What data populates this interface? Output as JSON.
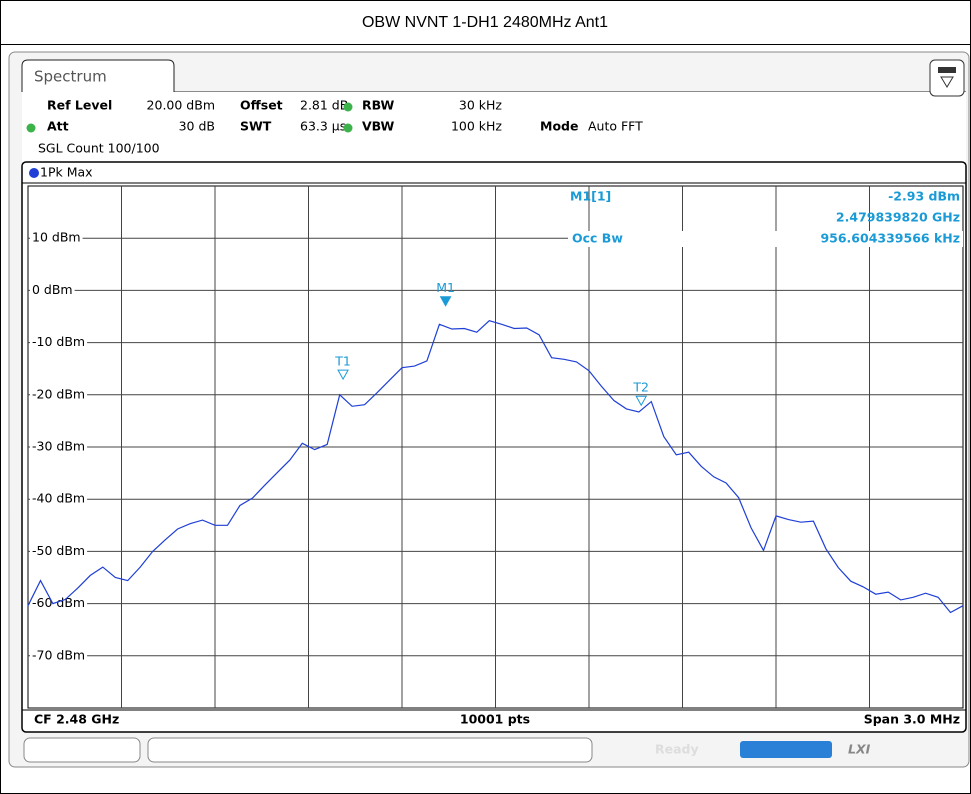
{
  "title": "OBW NVNT 1-DH1 2480MHz Ant1",
  "tab": "Spectrum",
  "settings": {
    "row1": [
      "Ref Level",
      "20.00 dBm",
      "Offset",
      "2.81 dB",
      "RBW",
      "30 kHz"
    ],
    "row2": [
      "Att",
      "30 dB",
      "SWT",
      "63.3 µs",
      "VBW",
      "100 kHz",
      "Mode",
      "Auto FFT"
    ],
    "row3": "SGL Count 100/100"
  },
  "status": "Ready",
  "chart_data": {
    "type": "line",
    "x": [
      2478.5,
      2478.54,
      2478.58,
      2478.62,
      2478.66,
      2478.7,
      2478.74,
      2478.78,
      2478.82,
      2478.86,
      2478.9,
      2478.94,
      2478.98,
      2479.02,
      2479.06,
      2479.1,
      2479.14,
      2479.18,
      2479.22,
      2479.26,
      2479.3,
      2479.34,
      2479.38,
      2479.42,
      2479.46,
      2479.5,
      2479.54,
      2479.58,
      2479.62,
      2479.66,
      2479.7,
      2479.74,
      2479.78,
      2479.82,
      2479.86,
      2479.9,
      2479.94,
      2479.98,
      2480.02,
      2480.06,
      2480.1,
      2480.14,
      2480.18,
      2480.22,
      2480.26,
      2480.3,
      2480.34,
      2480.38,
      2480.42,
      2480.46,
      2480.5,
      2480.54,
      2480.58,
      2480.62,
      2480.66,
      2480.7,
      2480.74,
      2480.78,
      2480.82,
      2480.86,
      2480.9,
      2480.94,
      2480.98,
      2481.02,
      2481.06,
      2481.1,
      2481.14,
      2481.18,
      2481.22,
      2481.26,
      2481.3,
      2481.34,
      2481.38,
      2481.42,
      2481.46,
      2481.5
    ],
    "series": [
      {
        "name": "1Pk Max",
        "color": "#1f3fd6",
        "values": [
          -60.4,
          -55.6,
          -60,
          -59.2,
          -57,
          -54.6,
          -53,
          -55,
          -55.6,
          -53,
          -50,
          -47.8,
          -45.7,
          -44.7,
          -44,
          -45,
          -45,
          -41.2,
          -39.8,
          -37.3,
          -34.9,
          -32.5,
          -29.3,
          -30.5,
          -29.5,
          -20,
          -22.2,
          -21.9,
          -19.6,
          -17.2,
          -14.8,
          -14.5,
          -13.5,
          -6.5,
          -7.4,
          -7.3,
          -8,
          -5.8,
          -6.5,
          -7.3,
          -7.2,
          -8.5,
          -12.9,
          -13.2,
          -13.7,
          -15.4,
          -18.4,
          -21.1,
          -22.7,
          -23.3,
          -21.3,
          -28,
          -31.5,
          -31,
          -33.7,
          -35.7,
          -36.9,
          -39.7,
          -45.5,
          -49.8,
          -43.2,
          -43.9,
          -44.4,
          -44.2,
          -49.5,
          -53.1,
          -55.7,
          -56.8,
          -58.2,
          -57.8,
          -59.3,
          -58.8,
          -58,
          -58.8,
          -61.7,
          -60.4
        ]
      }
    ],
    "xlim": [
      2478.5,
      2481.5
    ],
    "xticks": [
      2478.8,
      2479.1,
      2479.4,
      2479.7,
      2480.0,
      2480.3,
      2480.6,
      2480.9,
      2481.2
    ],
    "ylim": [
      -80,
      20
    ],
    "yticks": [
      {
        "value": 10,
        "label": "10 dBm"
      },
      {
        "value": 0,
        "label": "0 dBm"
      },
      {
        "value": -10,
        "label": "-10 dBm"
      },
      {
        "value": -20,
        "label": "-20 dBm"
      },
      {
        "value": -30,
        "label": "-30 dBm"
      },
      {
        "value": -40,
        "label": "-40 dBm"
      },
      {
        "value": -50,
        "label": "-50 dBm"
      },
      {
        "value": -60,
        "label": "-60 dBm"
      },
      {
        "value": -70,
        "label": "-70 dBm"
      }
    ],
    "grid": true,
    "marker_color": "#1a9ad6",
    "markers": [
      {
        "name": "M1",
        "x": 2479.83982,
        "value": -2.93,
        "value_label": "-2.93 dBm",
        "x_label": "2.479839820 GHz",
        "readout": "M1[1]",
        "filled": true
      },
      {
        "name": "T1",
        "x": 2479.5109,
        "value": -17,
        "filled": false
      },
      {
        "name": "T2",
        "x": 2480.4675,
        "value": -22,
        "filled": false
      }
    ],
    "occ_bw": {
      "label": "Occ Bw",
      "value": "956.604339566 kHz"
    },
    "footer": {
      "center": "CF 2.48 GHz",
      "points": "10001 pts",
      "span": "Span 3.0 MHz"
    }
  }
}
